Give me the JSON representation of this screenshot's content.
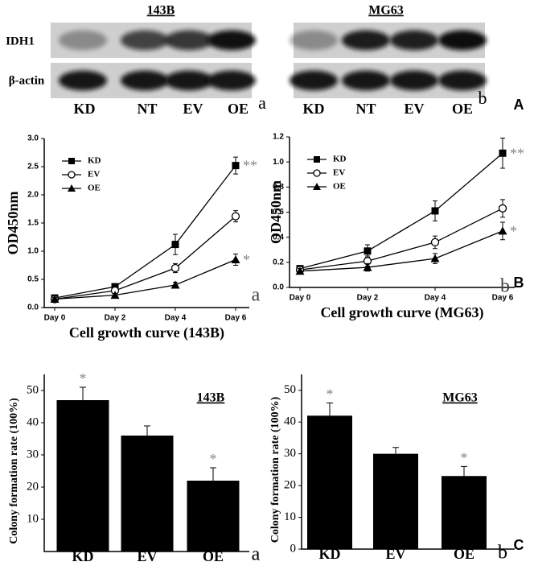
{
  "figure": {
    "panel_labels": [
      "A",
      "B",
      "C"
    ]
  },
  "blot_rows": [
    "IDH1",
    "β-actin"
  ],
  "blots": [
    {
      "title": "143B",
      "lanes": [
        "KD",
        "NT",
        "EV",
        "OE"
      ],
      "sublabel": "a"
    },
    {
      "title": "MG63",
      "lanes": [
        "KD",
        "NT",
        "EV",
        "OE"
      ],
      "sublabel": "b"
    }
  ],
  "chart_data": [
    {
      "type": "line",
      "xlabel": "Cell growth curve (143B)",
      "ylabel": "OD450nm",
      "panel_label": "a",
      "categories": [
        "Day 0",
        "Day 2",
        "Day 4",
        "Day 6"
      ],
      "ylim": [
        0,
        3
      ],
      "yticks": [
        {
          "value": 0,
          "label": "0.0"
        },
        0.5,
        {
          "value": 1,
          "label": "1.0"
        },
        1.5,
        {
          "value": 2,
          "label": "2.0"
        },
        2.5,
        {
          "value": 3,
          "label": "3.0"
        }
      ],
      "legend": "upper left",
      "series": [
        {
          "name": "KD",
          "marker": "square",
          "color": "#000000",
          "values": [
            0.17,
            0.37,
            1.12,
            2.52
          ],
          "errors": [
            0.05,
            0.05,
            0.18,
            0.15
          ],
          "annotation": "**"
        },
        {
          "name": "EV",
          "marker": "circle",
          "color": "#000000",
          "values": [
            0.15,
            0.3,
            0.7,
            1.62
          ],
          "errors": [
            0.04,
            0.05,
            0.08,
            0.1
          ]
        },
        {
          "name": "OE",
          "marker": "triangle",
          "color": "#000000",
          "values": [
            0.15,
            0.22,
            0.4,
            0.85
          ],
          "errors": [
            0.03,
            0.03,
            0.05,
            0.1
          ],
          "annotation": "*"
        }
      ]
    },
    {
      "type": "line",
      "xlabel": "Cell growth curve (MG63)",
      "ylabel": "OD450nm",
      "panel_label": "b",
      "categories": [
        "Day 0",
        "Day 2",
        "Day 4",
        "Day 6"
      ],
      "ylim": [
        0,
        1.2
      ],
      "yticks": [
        {
          "value": 0,
          "label": "0.0"
        },
        0.2,
        0.4,
        0.6,
        0.8,
        {
          "value": 1,
          "label": "1.0"
        },
        1.2
      ],
      "legend": "upper left",
      "series": [
        {
          "name": "KD",
          "marker": "square",
          "color": "#000000",
          "values": [
            0.15,
            0.29,
            0.61,
            1.07
          ],
          "errors": [
            0.02,
            0.05,
            0.08,
            0.12
          ],
          "annotation": "**"
        },
        {
          "name": "EV",
          "marker": "circle",
          "color": "#000000",
          "values": [
            0.14,
            0.21,
            0.36,
            0.63
          ],
          "errors": [
            0.02,
            0.04,
            0.05,
            0.07
          ]
        },
        {
          "name": "OE",
          "marker": "triangle",
          "color": "#000000",
          "values": [
            0.13,
            0.16,
            0.23,
            0.45
          ],
          "errors": [
            0.02,
            0.03,
            0.04,
            0.07
          ],
          "annotation": "*"
        }
      ]
    },
    {
      "type": "bar",
      "title": "143B",
      "ylabel": "Colony formation rate (100%)",
      "panel_label": "a",
      "categories": [
        "KD",
        "EV",
        "OE"
      ],
      "values": [
        47,
        36,
        22
      ],
      "errors": [
        4,
        3,
        4
      ],
      "annotations": [
        "*",
        null,
        "*"
      ],
      "color": "#000000",
      "ylim": [
        0,
        55
      ],
      "yticks": [
        10,
        20,
        30,
        40,
        50
      ]
    },
    {
      "type": "bar",
      "title": "MG63",
      "ylabel": "Colony formation rate (100%)",
      "panel_label": "b",
      "categories": [
        "KD",
        "EV",
        "OE"
      ],
      "values": [
        42,
        30,
        23
      ],
      "errors": [
        4,
        2,
        3
      ],
      "annotations": [
        "*",
        null,
        "*"
      ],
      "color": "#000000",
      "ylim": [
        0,
        55
      ],
      "yticks": [
        0,
        10,
        20,
        30,
        40,
        50
      ]
    }
  ]
}
